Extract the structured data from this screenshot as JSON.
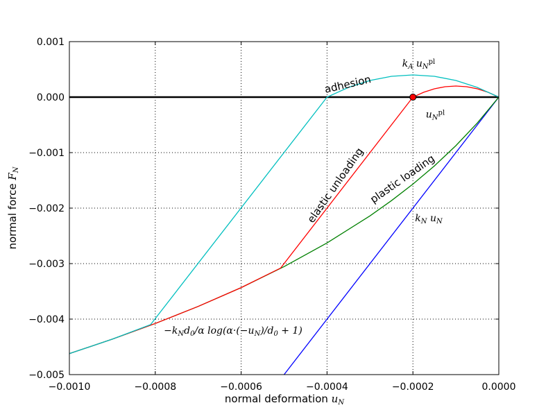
{
  "chart_data": {
    "type": "line",
    "title": "",
    "xlabel": {
      "text": "normal deformation ",
      "var": "u",
      "sub": "N"
    },
    "ylabel": {
      "text": "normal force ",
      "var": "F",
      "sub": "N"
    },
    "xlim": [
      -0.001,
      0.0
    ],
    "ylim": [
      -0.005,
      0.001
    ],
    "grid": true,
    "x_ticks": [
      "−0.0010",
      "−0.0008",
      "−0.0006",
      "−0.0004",
      "−0.0002",
      "0.0000"
    ],
    "x_tick_values": [
      -0.001,
      -0.0008,
      -0.0006,
      -0.0004,
      -0.0002,
      0.0
    ],
    "y_ticks": [
      "0.001",
      "0.000",
      "−0.001",
      "−0.002",
      "−0.003",
      "−0.004",
      "−0.005"
    ],
    "y_tick_values": [
      0.001,
      0.0,
      -0.001,
      -0.002,
      -0.003,
      -0.004,
      -0.005
    ],
    "zero_line": true,
    "series": [
      {
        "color": "#0000ff",
        "x": [
          -0.0005,
          0.0
        ],
        "y": [
          -0.005,
          0.0
        ]
      },
      {
        "color": "#008000",
        "x": [
          -0.001,
          -0.0009,
          -0.0008,
          -0.0007,
          -0.0006,
          -0.0005,
          -0.0004,
          -0.0003,
          -0.00025,
          -0.0002,
          -0.00015,
          -0.0001,
          -5e-05,
          0.0
        ],
        "y": [
          -0.004621,
          -0.004361,
          -0.004079,
          -0.003771,
          -0.003432,
          -0.003054,
          -0.002628,
          -0.00214,
          -0.001865,
          -0.001567,
          -0.001239,
          -0.000875,
          -0.000466,
          0.0
        ]
      },
      {
        "color": "#ff0000",
        "x": [
          -0.001,
          -0.0009,
          -0.0008,
          -0.0007,
          -0.0006,
          -0.000508,
          -0.0002,
          -0.000175,
          -0.00015,
          -0.000125,
          -0.0001,
          -7.5e-05,
          -5e-05,
          -2.5e-05,
          0.0
        ],
        "y": [
          -0.004621,
          -0.004361,
          -0.004079,
          -0.003771,
          -0.003432,
          -0.00308,
          0.0,
          8.75e-05,
          0.00015,
          0.0001875,
          0.0002,
          0.0001875,
          0.00015,
          8.75e-05,
          0.0
        ]
      },
      {
        "color": "#00bfbf",
        "x": [
          -0.001,
          -0.0009,
          -0.000811,
          -0.0004,
          -0.00035,
          -0.0003,
          -0.00025,
          -0.0002,
          -0.00015,
          -0.0001,
          -5e-05,
          0.0
        ],
        "y": [
          -0.004621,
          -0.004361,
          -0.0041,
          0.0,
          0.000175,
          0.0003,
          0.000375,
          0.0004,
          0.000375,
          0.0003,
          0.000175,
          0.0
        ]
      }
    ],
    "marker": {
      "x": -0.0002,
      "y": 0.0,
      "color": "#ff0000"
    },
    "annotations": [
      {
        "text": "adhesion",
        "x": -0.00035,
        "y": 0.00017,
        "rotate": -13
      },
      {
        "text": "elastic unloading",
        "x": -0.00035,
        "y": -0.0023,
        "rotate": -55
      },
      {
        "text": "plastic loading",
        "x": -0.00027,
        "y": -0.002,
        "rotate": -35
      }
    ],
    "math_labels": [
      {
        "parts": [
          [
            "k",
            ""
          ],
          [
            "A",
            "sub"
          ],
          [
            " u",
            ""
          ],
          [
            "N",
            "sub"
          ],
          [
            "pl",
            "sup"
          ]
        ],
        "x": -0.000225,
        "y": 0.00055
      },
      {
        "parts": [
          [
            "u",
            ""
          ],
          [
            "N",
            "sub"
          ],
          [
            "pl",
            "sup"
          ]
        ],
        "x": -0.00017,
        "y": -0.00037
      },
      {
        "parts": [
          [
            "k",
            ""
          ],
          [
            "N",
            "sub"
          ],
          [
            " u",
            ""
          ],
          [
            "N",
            "sub"
          ]
        ],
        "x": -0.000195,
        "y": -0.00224
      },
      {
        "parts": [
          [
            "−k",
            ""
          ],
          [
            "N",
            "sub"
          ],
          [
            "d",
            ""
          ],
          [
            "0",
            "sub"
          ],
          [
            "/α log(α·(−u",
            ""
          ],
          [
            "N",
            "sub"
          ],
          [
            ")/d",
            ""
          ],
          [
            "0",
            "sub"
          ],
          [
            " + 1)",
            ""
          ]
        ],
        "x": -0.00078,
        "y": -0.00426
      }
    ]
  }
}
